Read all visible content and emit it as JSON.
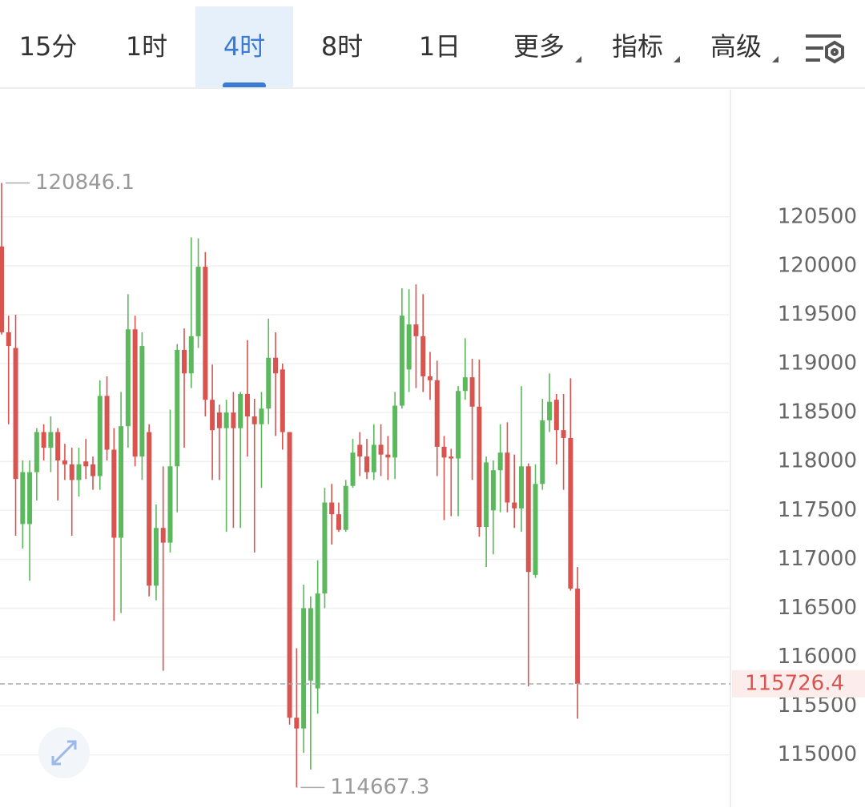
{
  "tabs": {
    "items": [
      "15分",
      "1时",
      "4时",
      "8时",
      "1日",
      "更多",
      "指标",
      "高级"
    ]
  },
  "chart_data": {
    "type": "candlestick",
    "up_color": "#5cb85c",
    "down_color": "#d9534f",
    "open": [
      120197,
      119320,
      119160,
      117360,
      117360,
      117890,
      118300,
      118140,
      118300,
      118010,
      117970,
      117810,
      118000,
      117970,
      117850,
      118670,
      118120,
      117220,
      118360,
      119350,
      118050,
      118300,
      116730,
      117320,
      117170,
      117950,
      119140,
      118900,
      119280,
      119990,
      118630,
      118500,
      118340,
      118500,
      118340,
      118690,
      118460,
      118380,
      118540,
      119060,
      118940,
      118300,
      115380,
      115270,
      115760,
      115680,
      116650,
      117580,
      117460,
      117300,
      117750,
      118170,
      118050,
      117890,
      118170,
      118070,
      118040,
      118570,
      118940,
      119400,
      119280,
      118870,
      118830,
      118150,
      118050,
      118030,
      118720,
      118860,
      118560,
      117330,
      117500,
      117910,
      118090,
      117580,
      117520,
      117950,
      116840,
      117770,
      118420,
      118630,
      118320,
      118240,
      116700
    ],
    "high": [
      120846.1,
      119490,
      119500,
      118010,
      118010,
      118340,
      118380,
      118460,
      118340,
      118180,
      118140,
      118140,
      118230,
      118050,
      118830,
      118870,
      118340,
      118710,
      119710,
      119490,
      119320,
      118380,
      117560,
      117950,
      118530,
      119200,
      119360,
      120290,
      120280,
      120140,
      118990,
      118580,
      118630,
      118710,
      118710,
      119240,
      118640,
      118710,
      119460,
      119320,
      119000,
      118300,
      116090,
      116740,
      116620,
      116990,
      117730,
      117770,
      117580,
      117810,
      118230,
      118300,
      118230,
      118380,
      118380,
      118260,
      118710,
      119770,
      119760,
      119810,
      119710,
      119120,
      119030,
      118260,
      118130,
      118770,
      119260,
      119050,
      119040,
      118050,
      118010,
      118380,
      118400,
      118070,
      118770,
      117980,
      117970,
      118640,
      118900,
      118690,
      118690,
      118850,
      116920
    ],
    "low": [
      119297,
      118380,
      117240,
      117110,
      116780,
      117600,
      118010,
      117890,
      117600,
      117810,
      117240,
      117640,
      117820,
      117710,
      117710,
      118010,
      116370,
      116450,
      118140,
      117950,
      117810,
      116620,
      116580,
      115860,
      117070,
      117480,
      118140,
      118750,
      119160,
      118460,
      117810,
      117810,
      117280,
      117320,
      117320,
      118050,
      117070,
      117730,
      118380,
      118260,
      118120,
      115310,
      114667.3,
      115020,
      114850,
      115420,
      116500,
      117150,
      117280,
      117280,
      117730,
      117850,
      117820,
      117810,
      117850,
      117810,
      117820,
      118540,
      118710,
      118750,
      118710,
      118630,
      117850,
      117400,
      117440,
      117440,
      118630,
      117810,
      117230,
      116920,
      117050,
      117480,
      117480,
      117320,
      117280,
      115700,
      116810,
      117710,
      118300,
      117970,
      117710,
      116680,
      115370
    ],
    "close": [
      119320,
      119180,
      117820,
      117890,
      117890,
      118300,
      118140,
      118300,
      118010,
      117970,
      117810,
      117970,
      117950,
      117850,
      118670,
      118120,
      117220,
      118360,
      119350,
      118050,
      119180,
      116730,
      117320,
      117170,
      117950,
      119140,
      118900,
      119280,
      119990,
      118630,
      118320,
      118340,
      118500,
      118340,
      118690,
      118460,
      118380,
      118540,
      119060,
      118900,
      118300,
      115380,
      115270,
      116500,
      116500,
      116650,
      117580,
      117460,
      117300,
      117750,
      118090,
      118050,
      117890,
      118170,
      118070,
      118040,
      118570,
      119490,
      119400,
      119280,
      118870,
      118830,
      118150,
      118040,
      118030,
      118720,
      118860,
      118560,
      117330,
      117990,
      117910,
      118090,
      117580,
      117520,
      117950,
      116870,
      117770,
      118420,
      118610,
      118320,
      118240,
      116700,
      115726.4
    ],
    "ylim": [
      114490,
      121800
    ],
    "yticks": [
      115000,
      115500,
      116000,
      116500,
      117000,
      117500,
      118000,
      118500,
      119000,
      119500,
      120000,
      120500
    ],
    "grid": true
  }
}
